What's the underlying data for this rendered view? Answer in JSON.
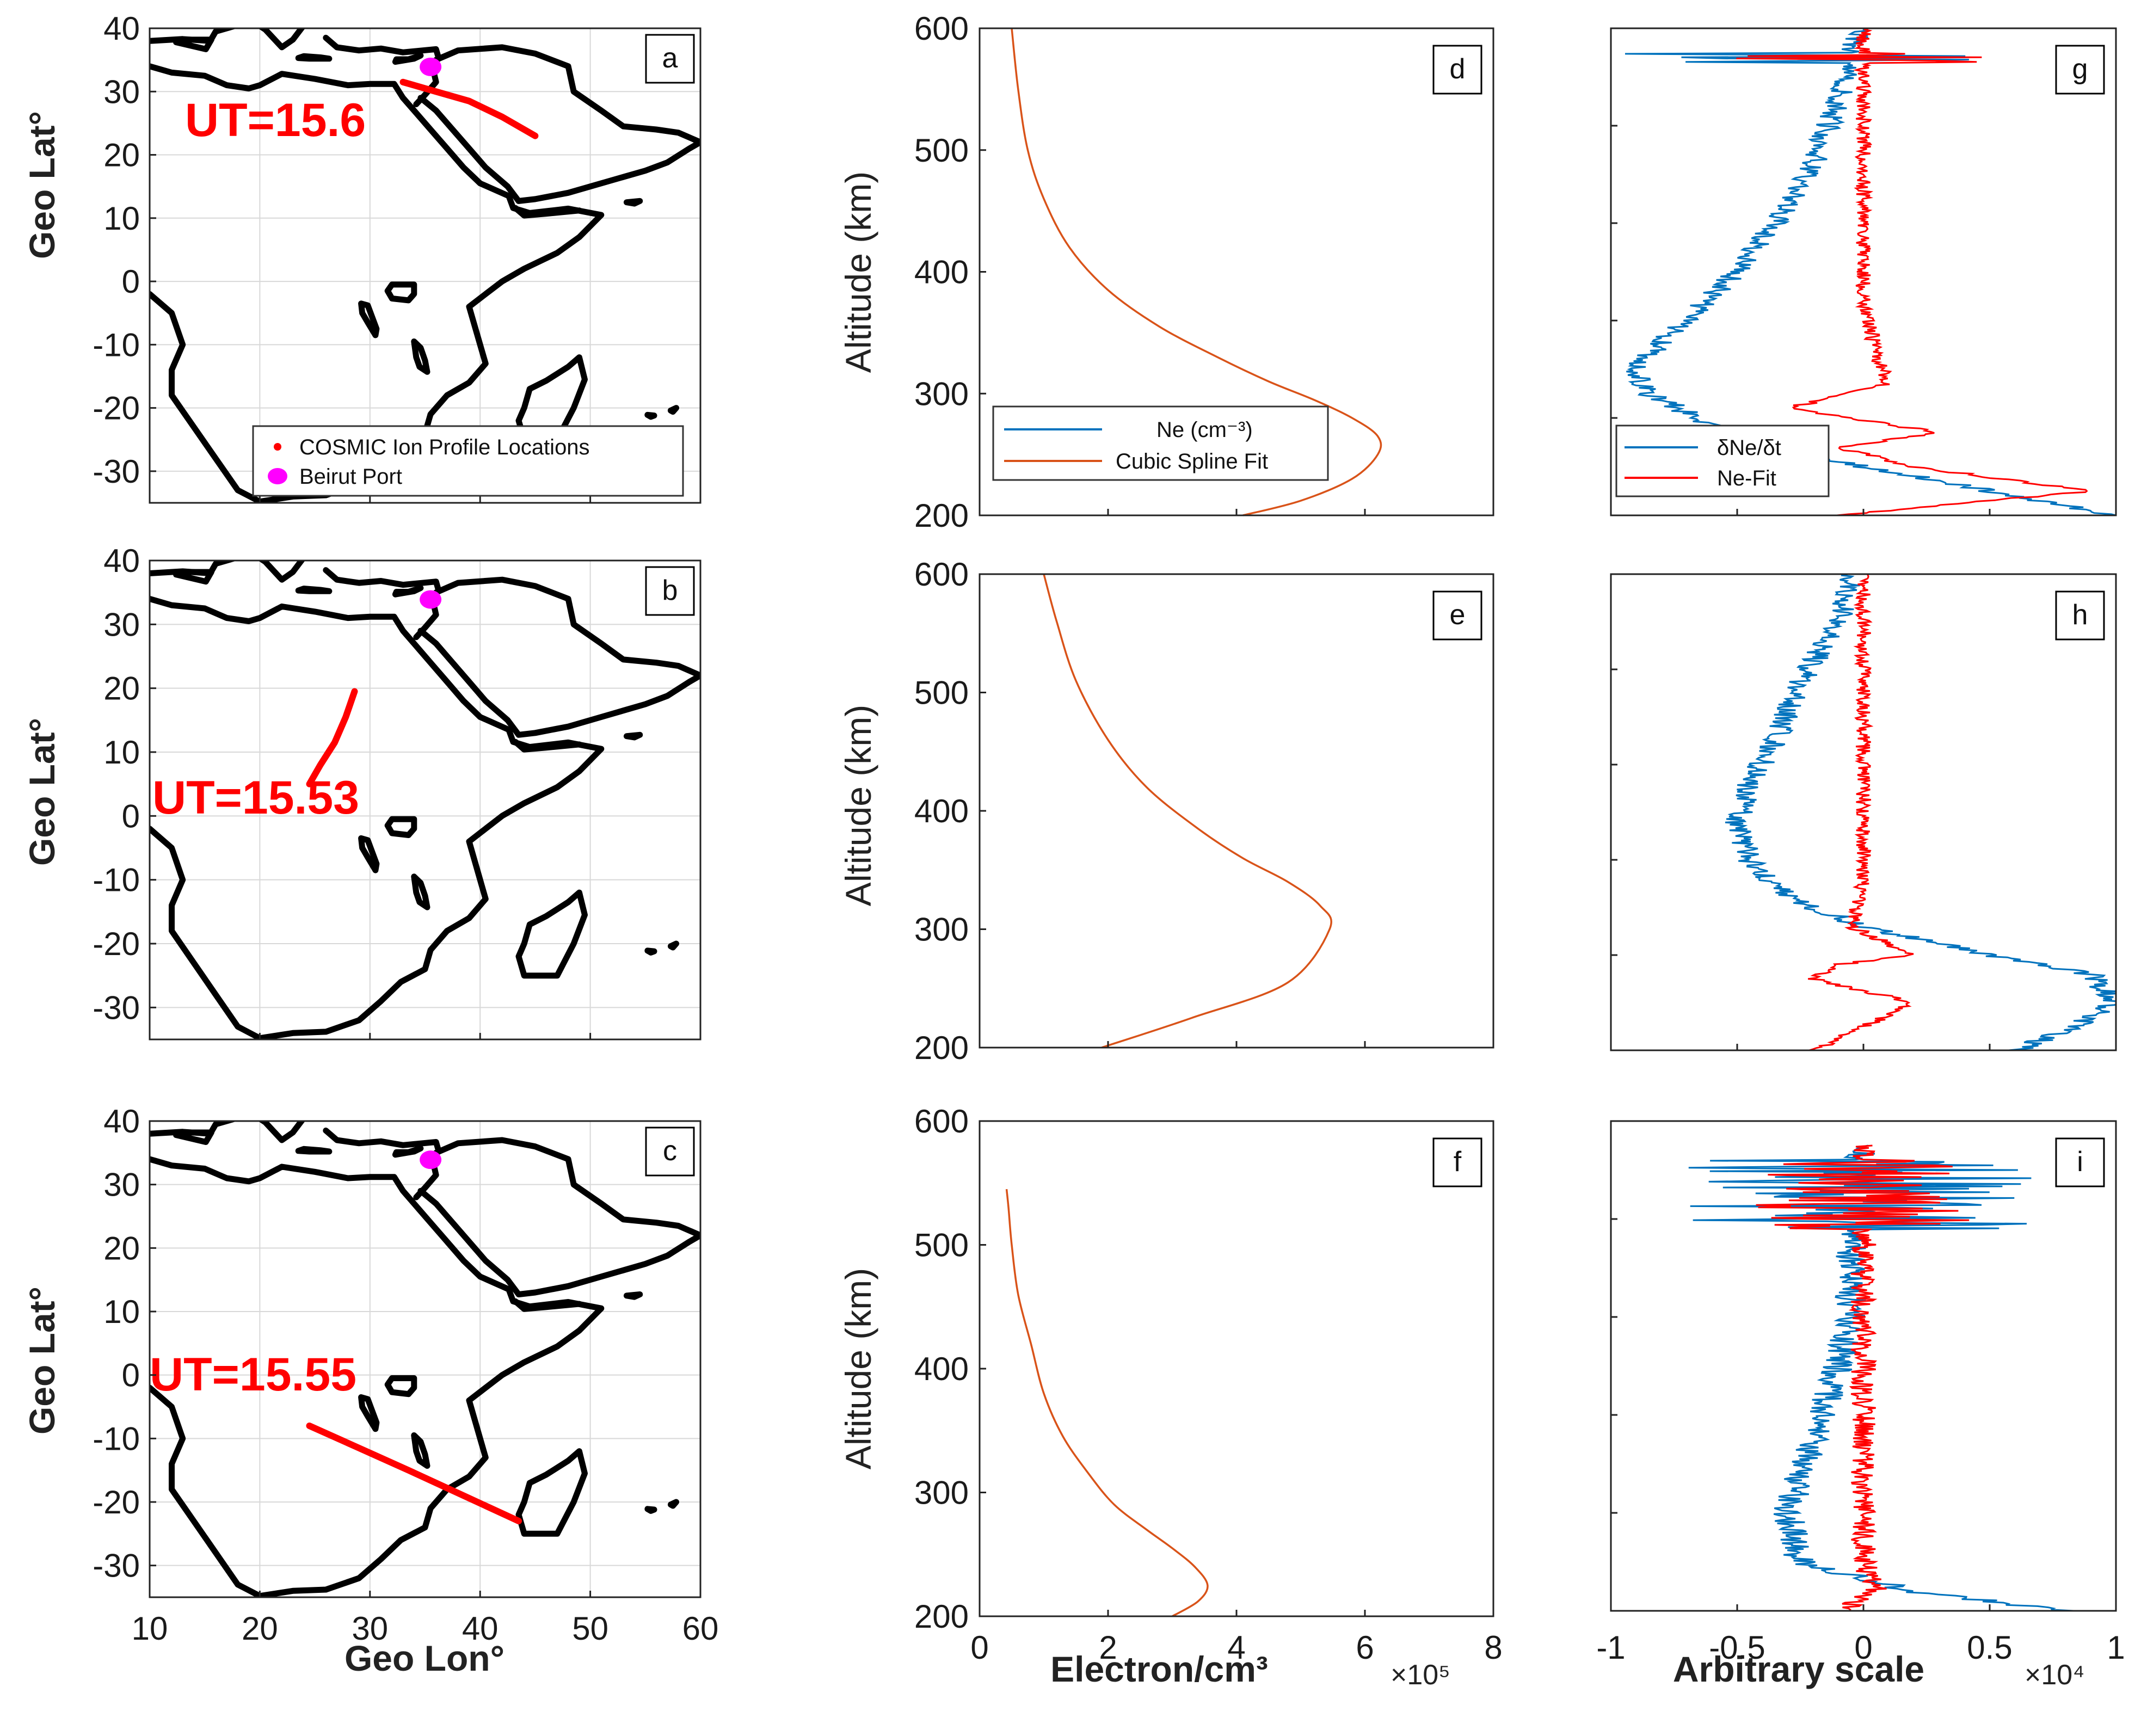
{
  "figure": {
    "map_ylabel": "Geo Lat°",
    "map_xlabel": "Geo Lon°",
    "profile_ylabel": "Altitude (km)",
    "profile_xlabel": "Electron/cm³",
    "profile_x_multiplier": "×10⁵",
    "deriv_xlabel": "Arbitrary scale",
    "deriv_x_multiplier": "×10⁴"
  },
  "colors": {
    "ne": "#0072BD",
    "fit": "#D95319",
    "track": "#ff0000",
    "deriv_blue": "#0072BD",
    "deriv_red": "#ff0000",
    "port": "#ff00ff",
    "coast": "#000000"
  },
  "chart_data": [
    {
      "panel": "a",
      "type": "map",
      "xlim": [
        10,
        60
      ],
      "ylim": [
        -35,
        40
      ],
      "xticks": [
        10,
        20,
        30,
        40,
        50,
        60
      ],
      "yticks": [
        40,
        30,
        20,
        10,
        0,
        -10,
        -20,
        -30
      ],
      "grid": true,
      "ut_label": "UT=15.6",
      "track_lon": [
        33.0,
        36.0,
        39.0,
        42.0,
        45.0
      ],
      "track_lat": [
        31.5,
        30.0,
        28.5,
        26.0,
        23.0
      ],
      "port": {
        "lon": 35.5,
        "lat": 33.9
      },
      "legend": [
        "COSMIC Ion Profile Locations",
        "Beirut Port"
      ],
      "legend_loc": "bottom-right"
    },
    {
      "panel": "b",
      "type": "map",
      "xlim": [
        10,
        60
      ],
      "ylim": [
        -35,
        40
      ],
      "xticks": [
        10,
        20,
        30,
        40,
        50,
        60
      ],
      "yticks": [
        40,
        30,
        20,
        10,
        0,
        -10,
        -20,
        -30
      ],
      "grid": true,
      "ut_label": "UT=15.53",
      "track_lon": [
        24.5,
        25.5,
        26.8,
        27.8,
        28.6
      ],
      "track_lat": [
        5.0,
        8.0,
        11.5,
        15.5,
        19.5
      ],
      "port": {
        "lon": 35.5,
        "lat": 33.9
      }
    },
    {
      "panel": "c",
      "type": "map",
      "xlim": [
        10,
        60
      ],
      "ylim": [
        -35,
        40
      ],
      "xticks": [
        10,
        20,
        30,
        40,
        50,
        60
      ],
      "yticks": [
        40,
        30,
        20,
        10,
        0,
        -10,
        -20,
        -30
      ],
      "grid": true,
      "ut_label": "UT=15.55",
      "track_lon": [
        24.5,
        29.0,
        33.5,
        38.5,
        43.5
      ],
      "track_lat": [
        -8.0,
        -11.5,
        -15.0,
        -19.0,
        -23.0
      ],
      "port": {
        "lon": 35.5,
        "lat": 33.9
      }
    },
    {
      "panel": "d",
      "type": "line",
      "xlim": [
        0,
        8
      ],
      "ylim": [
        200,
        600
      ],
      "xticks": [
        0,
        2,
        4,
        6,
        8
      ],
      "yticks": [
        200,
        300,
        400,
        500,
        600
      ],
      "grid": false,
      "legend": [
        "Ne (cm⁻³)",
        "Cubic Spline Fit"
      ],
      "legend_loc": "bottom-left",
      "series": [
        {
          "name": "Cubic Spline Fit",
          "x": [
            4.1,
            5.0,
            5.8,
            6.2,
            6.2,
            5.8,
            5.2,
            4.5,
            3.7,
            2.8,
            2.0,
            1.4,
            1.0,
            0.75,
            0.6,
            0.5
          ],
          "y": [
            200,
            212,
            230,
            250,
            265,
            280,
            295,
            310,
            330,
            355,
            385,
            420,
            460,
            500,
            550,
            600
          ]
        }
      ]
    },
    {
      "panel": "e",
      "type": "line",
      "xlim": [
        0,
        8
      ],
      "ylim": [
        200,
        600
      ],
      "xticks": [
        0,
        2,
        4,
        6,
        8
      ],
      "yticks": [
        200,
        300,
        400,
        500,
        600
      ],
      "grid": false,
      "series": [
        {
          "name": "Cubic Spline Fit",
          "x": [
            1.9,
            3.3,
            4.8,
            5.45,
            5.3,
            4.8,
            4.1,
            3.4,
            2.6,
            2.0,
            1.5,
            1.2,
            1.0
          ],
          "y": [
            200,
            225,
            255,
            300,
            320,
            340,
            360,
            385,
            420,
            460,
            510,
            560,
            600
          ]
        }
      ]
    },
    {
      "panel": "f",
      "type": "line",
      "xlim": [
        0,
        8
      ],
      "ylim": [
        200,
        600
      ],
      "xticks": [
        0,
        2,
        4,
        6,
        8
      ],
      "yticks": [
        200,
        300,
        400,
        500,
        600
      ],
      "grid": false,
      "series": [
        {
          "name": "Cubic Spline Fit",
          "x": [
            3.0,
            3.4,
            3.55,
            3.35,
            3.0,
            2.6,
            2.1,
            1.7,
            1.3,
            1.0,
            0.8,
            0.6,
            0.5,
            0.45,
            0.42
          ],
          "y": [
            200,
            212,
            225,
            240,
            255,
            270,
            290,
            315,
            345,
            380,
            420,
            460,
            500,
            530,
            545
          ]
        }
      ]
    },
    {
      "panel": "g",
      "type": "line",
      "xlim": [
        -1,
        1
      ],
      "xticks": [
        -1,
        -0.5,
        0,
        0.5,
        1
      ],
      "legend": [
        "δNe/δt",
        "Ne-Fit"
      ],
      "legend_loc": "bottom-left",
      "series": [
        {
          "name": "δNe/δt",
          "x": [
            1.0,
            0.7,
            0.3,
            -0.2,
            -0.5,
            -0.85,
            -0.9,
            -0.75,
            -0.5,
            -0.35,
            -0.2,
            -0.1,
            -0.05,
            -0.02
          ],
          "t": [
            0.0,
            0.03,
            0.07,
            0.12,
            0.16,
            0.25,
            0.3,
            0.38,
            0.5,
            0.6,
            0.72,
            0.85,
            0.93,
            1.0
          ]
        },
        {
          "name": "Ne-Fit",
          "x": [
            -0.1,
            0.9,
            0.2,
            -0.1,
            0.3,
            -0.3,
            0.1,
            0.05,
            0.0,
            0.0,
            0.0,
            0.0,
            0.0
          ],
          "t": [
            0.0,
            0.05,
            0.1,
            0.14,
            0.17,
            0.22,
            0.27,
            0.33,
            0.45,
            0.6,
            0.75,
            0.9,
            1.0
          ]
        }
      ]
    },
    {
      "panel": "h",
      "type": "line",
      "xlim": [
        -1,
        1
      ],
      "xticks": [
        -1,
        -0.5,
        0,
        0.5,
        1
      ],
      "series": [
        {
          "name": "δNe/δt",
          "x": [
            0.6,
            0.8,
            1.0,
            0.9,
            0.5,
            0.0,
            -0.3,
            -0.45,
            -0.5,
            -0.45,
            -0.35,
            -0.25,
            -0.1,
            -0.05
          ],
          "t": [
            0.0,
            0.04,
            0.1,
            0.16,
            0.2,
            0.26,
            0.32,
            0.4,
            0.48,
            0.56,
            0.65,
            0.77,
            0.9,
            1.0
          ]
        },
        {
          "name": "Ne-Fit",
          "x": [
            -0.2,
            0.0,
            0.2,
            -0.2,
            -0.1,
            0.2,
            -0.05,
            0.0,
            0.0,
            0.0,
            0.0,
            0.0
          ],
          "t": [
            0.0,
            0.05,
            0.1,
            0.15,
            0.18,
            0.2,
            0.26,
            0.35,
            0.5,
            0.65,
            0.8,
            1.0
          ]
        }
      ]
    },
    {
      "panel": "i",
      "type": "line",
      "xlim": [
        -1,
        1
      ],
      "xticks": [
        -1,
        -0.5,
        0,
        0.5,
        1
      ],
      "series": [
        {
          "name": "δNe/δt",
          "x": [
            0.8,
            0.2,
            -0.25,
            -0.3,
            -0.2,
            -0.1,
            -0.05,
            -0.05,
            -0.05,
            0.0
          ],
          "t": [
            0.0,
            0.04,
            0.1,
            0.2,
            0.35,
            0.5,
            0.6,
            0.72,
            0.85,
            0.95
          ]
        },
        {
          "name": "Ne-Fit",
          "x": [
            -0.1,
            0.05,
            0.0,
            0.0,
            0.0,
            0.0,
            0.0,
            0.0,
            0.0
          ],
          "t": [
            0.0,
            0.04,
            0.1,
            0.25,
            0.45,
            0.6,
            0.72,
            0.85,
            0.95
          ]
        }
      ]
    }
  ]
}
